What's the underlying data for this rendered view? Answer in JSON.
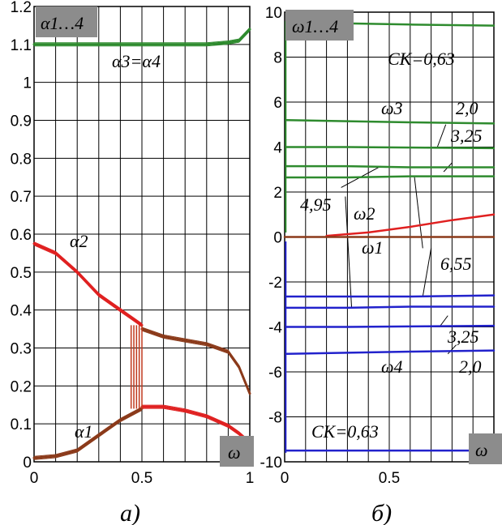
{
  "chart_data": [
    {
      "type": "line",
      "panel_caption": "a)",
      "y_title_box": "α1…4",
      "x_title_box": "ω",
      "xlim": [
        0,
        1
      ],
      "ylim": [
        0,
        1.2
      ],
      "x_ticks": [
        "0",
        "0.5",
        "1"
      ],
      "y_ticks": [
        "0",
        "0.1",
        "0.2",
        "0.3",
        "0.4",
        "0.5",
        "0.6",
        "0.7",
        "0.8",
        "0.9",
        "1",
        "1.1",
        "1.2"
      ],
      "grid": true,
      "annotations": [
        "α3=α4",
        "α2",
        "α1"
      ],
      "series": [
        {
          "color": "#2e8b2e",
          "x": [
            0,
            0.1,
            0.2,
            0.3,
            0.4,
            0.5,
            0.6,
            0.7,
            0.8,
            0.9,
            0.95,
            1.0
          ],
          "y": [
            1.1,
            1.1,
            1.1,
            1.1,
            1.1,
            1.1,
            1.1,
            1.1,
            1.1,
            1.105,
            1.11,
            1.14
          ]
        },
        {
          "color": "#e02020",
          "x": [
            0,
            0.1,
            0.2,
            0.3,
            0.4,
            0.45,
            0.5
          ],
          "y": [
            0.575,
            0.55,
            0.5,
            0.44,
            0.4,
            0.38,
            0.36
          ]
        },
        {
          "color": "#8b3a1a",
          "x": [
            0.5,
            0.6,
            0.7,
            0.8,
            0.9,
            0.95,
            1.0
          ],
          "y": [
            0.35,
            0.33,
            0.32,
            0.31,
            0.29,
            0.25,
            0.18
          ]
        },
        {
          "color": "#8b3a1a",
          "x": [
            0,
            0.1,
            0.2,
            0.3,
            0.4,
            0.5
          ],
          "y": [
            0.01,
            0.015,
            0.03,
            0.07,
            0.11,
            0.14
          ]
        },
        {
          "color": "#e02020",
          "x": [
            0.5,
            0.6,
            0.7,
            0.8,
            0.9,
            0.95,
            1.0
          ],
          "y": [
            0.145,
            0.145,
            0.135,
            0.12,
            0.095,
            0.075,
            0.05
          ]
        }
      ],
      "transition": {
        "color": "#c0391d",
        "x": [
          0.45,
          0.5
        ],
        "y": [
          0.14,
          0.36
        ]
      }
    },
    {
      "type": "line",
      "panel_caption": "б)",
      "y_title_box": "ω1…4",
      "x_title_box": "ω",
      "xlim": [
        0,
        1
      ],
      "ylim": [
        -10,
        10
      ],
      "x_ticks": [
        "0",
        "0.5"
      ],
      "y_ticks": [
        "-10",
        "-8",
        "-6",
        "-4",
        "-2",
        "0",
        "2",
        "4",
        "6",
        "8",
        "10"
      ],
      "grid": true,
      "annotations": [
        "CK=0,63",
        "ω3",
        "2,0",
        "3,25",
        "4,95",
        "ω2",
        "ω1",
        "6,55",
        "3,25",
        "ω4",
        "2,0",
        "CK=0,63"
      ],
      "series": [
        {
          "color": "#2e8b2e",
          "x": [
            0.01,
            0.3,
            0.6,
            1.0
          ],
          "y": [
            9.5,
            9.5,
            9.45,
            9.4
          ]
        },
        {
          "color": "#2e8b2e",
          "x": [
            0.01,
            0.3,
            0.6,
            1.0
          ],
          "y": [
            5.2,
            5.15,
            5.1,
            5.05
          ]
        },
        {
          "color": "#2e8b2e",
          "x": [
            0.01,
            0.3,
            0.6,
            1.0
          ],
          "y": [
            4.0,
            4.0,
            3.98,
            3.95
          ]
        },
        {
          "color": "#2e8b2e",
          "x": [
            0.01,
            0.3,
            0.6,
            1.0
          ],
          "y": [
            3.15,
            3.15,
            3.1,
            3.1
          ]
        },
        {
          "color": "#2e8b2e",
          "x": [
            0.01,
            0.3,
            0.6,
            1.0
          ],
          "y": [
            2.65,
            2.65,
            2.7,
            2.7
          ]
        },
        {
          "color": "#e02020",
          "x": [
            0.2,
            0.4,
            0.6,
            0.8,
            1.0
          ],
          "y": [
            0.05,
            0.2,
            0.45,
            0.75,
            1.0
          ]
        },
        {
          "color": "#8b3a1a",
          "x": [
            0.0,
            0.5,
            1.0
          ],
          "y": [
            0.0,
            0.0,
            0.0
          ]
        },
        {
          "color": "#2222cc",
          "x": [
            0.01,
            0.3,
            0.6,
            1.0
          ],
          "y": [
            -2.65,
            -2.65,
            -2.65,
            -2.6
          ]
        },
        {
          "color": "#2222cc",
          "x": [
            0.01,
            0.3,
            0.6,
            1.0
          ],
          "y": [
            -3.15,
            -3.15,
            -3.1,
            -3.1
          ]
        },
        {
          "color": "#2222cc",
          "x": [
            0.01,
            0.3,
            0.6,
            1.0
          ],
          "y": [
            -4.0,
            -4.0,
            -3.98,
            -3.95
          ]
        },
        {
          "color": "#2222cc",
          "x": [
            0.01,
            0.3,
            0.6,
            1.0
          ],
          "y": [
            -5.2,
            -5.15,
            -5.1,
            -5.05
          ]
        },
        {
          "color": "#2222cc",
          "x": [
            0.01,
            0.3,
            0.6,
            1.0
          ],
          "y": [
            -9.5,
            -9.5,
            -9.5,
            -9.5
          ]
        }
      ]
    }
  ]
}
